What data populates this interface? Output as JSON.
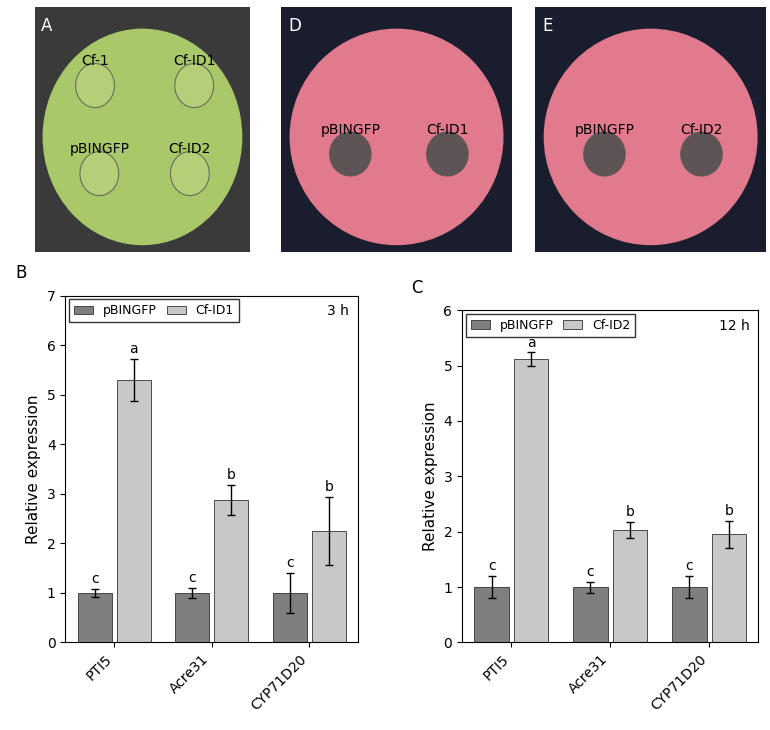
{
  "chart_data": [
    {
      "type": "bar",
      "panel": "B",
      "annotation": "3 h",
      "y_label": "Relative expression",
      "categories": [
        "PTI5",
        "Acre31",
        "CYP71D20"
      ],
      "series": [
        {
          "name": "pBINGFP",
          "color": "#7f7f7f",
          "values": [
            1,
            1,
            1
          ],
          "errors": [
            0.08,
            0.1,
            0.4
          ],
          "significance": [
            "c",
            "c",
            "c"
          ]
        },
        {
          "name": "Cf-ID1",
          "color": "#c8c8c8",
          "values": [
            5.3,
            2.88,
            2.25
          ],
          "errors": [
            0.42,
            0.3,
            0.68
          ],
          "significance": [
            "a",
            "b",
            "b"
          ]
        }
      ],
      "ylim": [
        0,
        7
      ],
      "yticks": [
        0,
        1,
        2,
        3,
        4,
        5,
        6,
        7
      ],
      "legend": "upper left"
    },
    {
      "type": "bar",
      "panel": "C",
      "annotation": "12 h",
      "y_label": "Relative expression",
      "categories": [
        "PTI5",
        "Acre31",
        "CYP71D20"
      ],
      "series": [
        {
          "name": "pBINGFP",
          "color": "#7f7f7f",
          "values": [
            1,
            1,
            1
          ],
          "errors": [
            0.2,
            0.1,
            0.2
          ],
          "significance": [
            "c",
            "c",
            "c"
          ]
        },
        {
          "name": "Cf-ID2",
          "color": "#c8c8c8",
          "values": [
            5.12,
            2.03,
            1.95
          ],
          "errors": [
            0.12,
            0.15,
            0.25
          ],
          "significance": [
            "a",
            "b",
            "b"
          ]
        }
      ],
      "ylim": [
        0,
        6
      ],
      "yticks": [
        0,
        1,
        2,
        3,
        4,
        5,
        6
      ],
      "legend": "upper left"
    }
  ],
  "photos": [
    {
      "panel": "A",
      "labels": [
        "Cf-1",
        "Cf-ID1",
        "pBINGFP",
        "Cf-ID2"
      ]
    },
    {
      "panel": "D",
      "labels": [
        "pBINGFP",
        "Cf-ID1"
      ]
    },
    {
      "panel": "E",
      "labels": [
        "pBINGFP",
        "Cf-ID2"
      ]
    }
  ]
}
